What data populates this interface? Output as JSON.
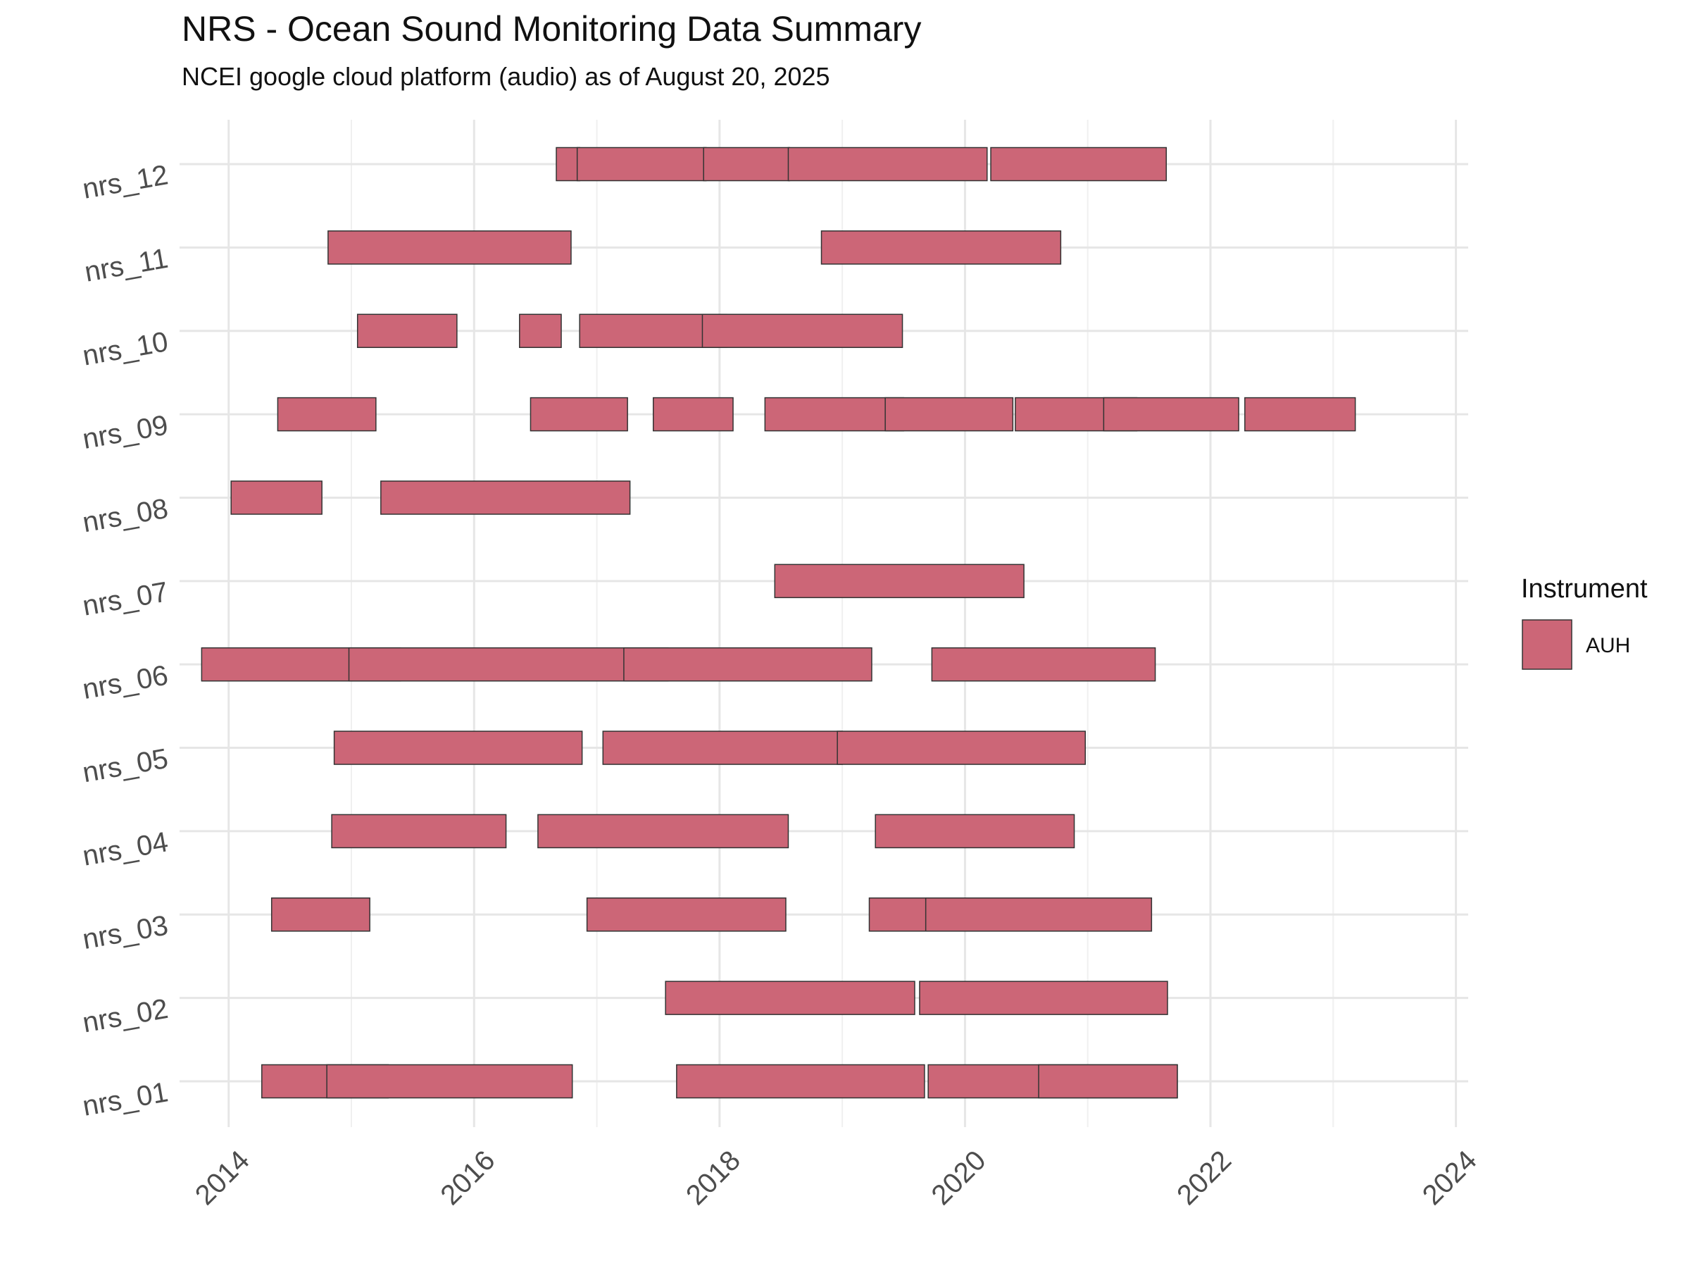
{
  "chart_data": {
    "type": "gantt",
    "title": "NRS - Ocean Sound Monitoring Data Summary",
    "subtitle": "NCEI google cloud platform (audio) as of August 20, 2025",
    "xlabel": "",
    "ylabel": "",
    "xlim": [
      2013.6,
      2024.1
    ],
    "x_ticks": [
      2014,
      2016,
      2018,
      2020,
      2022,
      2024
    ],
    "x_tick_labels": [
      "2014",
      "2016",
      "2018",
      "2020",
      "2022",
      "2024"
    ],
    "categories": [
      "nrs_01",
      "nrs_02",
      "nrs_03",
      "nrs_04",
      "nrs_05",
      "nrs_06",
      "nrs_07",
      "nrs_08",
      "nrs_09",
      "nrs_10",
      "nrs_11",
      "nrs_12"
    ],
    "grid": true,
    "legend": {
      "title": "Instrument",
      "position": "right",
      "entries": [
        {
          "name": "AUH",
          "color": "#cc6677"
        }
      ]
    },
    "bar_color": "#cc6677",
    "bar_outline": "#333333",
    "series": [
      {
        "name": "AUH",
        "category": "nrs_01",
        "intervals": [
          [
            2014.27,
            2015.3
          ],
          [
            2014.8,
            2016.8
          ],
          [
            2017.65,
            2019.67
          ],
          [
            2019.7,
            2021.73
          ],
          [
            2020.6,
            2021.73
          ]
        ]
      },
      {
        "name": "AUH",
        "category": "nrs_02",
        "intervals": [
          [
            2017.56,
            2019.59
          ],
          [
            2019.63,
            2021.65
          ]
        ]
      },
      {
        "name": "AUH",
        "category": "nrs_03",
        "intervals": [
          [
            2014.35,
            2015.15
          ],
          [
            2016.92,
            2018.54
          ],
          [
            2019.22,
            2020.2
          ],
          [
            2019.68,
            2021.52
          ]
        ]
      },
      {
        "name": "AUH",
        "category": "nrs_04",
        "intervals": [
          [
            2014.84,
            2016.26
          ],
          [
            2016.52,
            2018.56
          ],
          [
            2019.27,
            2020.89
          ]
        ]
      },
      {
        "name": "AUH",
        "category": "nrs_05",
        "intervals": [
          [
            2014.86,
            2016.88
          ],
          [
            2017.05,
            2019.0
          ],
          [
            2018.96,
            2020.98
          ]
        ]
      },
      {
        "name": "AUH",
        "category": "nrs_06",
        "intervals": [
          [
            2013.78,
            2015.4
          ],
          [
            2014.98,
            2017.58
          ],
          [
            2017.22,
            2019.24
          ],
          [
            2019.73,
            2021.55
          ]
        ]
      },
      {
        "name": "AUH",
        "category": "nrs_07",
        "intervals": [
          [
            2018.45,
            2020.48
          ]
        ]
      },
      {
        "name": "AUH",
        "category": "nrs_08",
        "intervals": [
          [
            2014.02,
            2014.76
          ],
          [
            2015.24,
            2017.27
          ]
        ]
      },
      {
        "name": "AUH",
        "category": "nrs_09",
        "intervals": [
          [
            2014.4,
            2015.2
          ],
          [
            2016.46,
            2017.25
          ],
          [
            2017.46,
            2018.11
          ],
          [
            2018.37,
            2019.5
          ],
          [
            2019.35,
            2020.39
          ],
          [
            2020.41,
            2021.4
          ],
          [
            2021.13,
            2022.23
          ],
          [
            2022.28,
            2023.18
          ]
        ]
      },
      {
        "name": "AUH",
        "category": "nrs_10",
        "intervals": [
          [
            2015.05,
            2015.86
          ],
          [
            2016.37,
            2016.71
          ],
          [
            2016.86,
            2018.06
          ],
          [
            2017.86,
            2019.49
          ]
        ]
      },
      {
        "name": "AUH",
        "category": "nrs_11",
        "intervals": [
          [
            2014.81,
            2016.79
          ],
          [
            2018.83,
            2020.78
          ]
        ]
      },
      {
        "name": "AUH",
        "category": "nrs_12",
        "intervals": [
          [
            2016.67,
            2016.86
          ],
          [
            2016.84,
            2017.89
          ],
          [
            2017.87,
            2018.57
          ],
          [
            2018.56,
            2020.18
          ],
          [
            2020.21,
            2021.64
          ]
        ]
      }
    ]
  }
}
